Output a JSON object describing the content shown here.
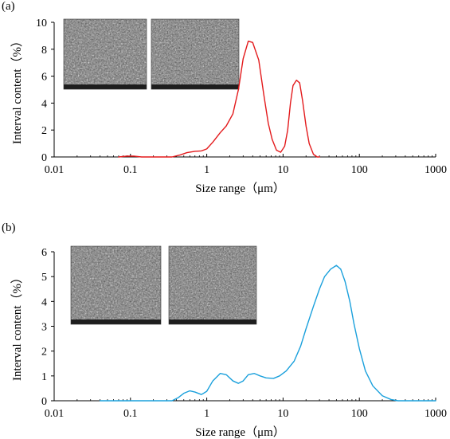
{
  "chart_data": [
    {
      "panel_label": "(a)",
      "type": "line",
      "xlabel": "Size range（μm）",
      "ylabel": "Interval content（%）",
      "x_scale": "log",
      "xlim": [
        0.01,
        1000
      ],
      "ylim": [
        0,
        10
      ],
      "x_ticks": [
        "0.01",
        "0.1",
        "1",
        "10",
        "100",
        "1000"
      ],
      "y_ticks": [
        "0",
        "2",
        "4",
        "6",
        "8",
        "10"
      ],
      "series": [
        {
          "color": "#e31a1c",
          "points": [
            [
              0.07,
              0.0
            ],
            [
              0.09,
              0.06
            ],
            [
              0.11,
              0.06
            ],
            [
              0.14,
              0.0
            ],
            [
              0.35,
              0.0
            ],
            [
              0.45,
              0.15
            ],
            [
              0.55,
              0.32
            ],
            [
              0.7,
              0.42
            ],
            [
              0.85,
              0.45
            ],
            [
              1.0,
              0.6
            ],
            [
              1.2,
              1.1
            ],
            [
              1.5,
              1.8
            ],
            [
              1.8,
              2.3
            ],
            [
              2.2,
              3.2
            ],
            [
              2.6,
              5.0
            ],
            [
              3.0,
              7.3
            ],
            [
              3.5,
              8.6
            ],
            [
              4.0,
              8.5
            ],
            [
              4.8,
              7.2
            ],
            [
              5.6,
              4.6
            ],
            [
              6.4,
              2.5
            ],
            [
              7.2,
              1.3
            ],
            [
              8.2,
              0.5
            ],
            [
              9.3,
              0.35
            ],
            [
              10.5,
              0.8
            ],
            [
              11.5,
              2.0
            ],
            [
              12.5,
              4.0
            ],
            [
              13.5,
              5.3
            ],
            [
              15.0,
              5.7
            ],
            [
              16.5,
              5.5
            ],
            [
              18.0,
              4.2
            ],
            [
              20.0,
              2.3
            ],
            [
              22.0,
              1.0
            ],
            [
              25.0,
              0.2
            ],
            [
              28.0,
              0.0
            ],
            [
              30.0,
              0.0
            ]
          ]
        }
      ]
    },
    {
      "panel_label": "(b)",
      "type": "line",
      "xlabel": "Size range（μm）",
      "ylabel": "Interval content（%）",
      "x_scale": "log",
      "xlim": [
        0.01,
        1000
      ],
      "ylim": [
        0,
        6
      ],
      "x_ticks": [
        "0.01",
        "0.1",
        "1",
        "10",
        "100",
        "1000"
      ],
      "y_ticks": [
        "0",
        "1",
        "2",
        "3",
        "4",
        "5",
        "6"
      ],
      "series": [
        {
          "color": "#1aa0dc",
          "points": [
            [
              0.04,
              0.0
            ],
            [
              0.35,
              0.0
            ],
            [
              0.42,
              0.12
            ],
            [
              0.5,
              0.3
            ],
            [
              0.6,
              0.4
            ],
            [
              0.7,
              0.35
            ],
            [
              0.85,
              0.25
            ],
            [
              1.0,
              0.38
            ],
            [
              1.2,
              0.8
            ],
            [
              1.5,
              1.1
            ],
            [
              1.8,
              1.05
            ],
            [
              2.2,
              0.8
            ],
            [
              2.6,
              0.7
            ],
            [
              3.0,
              0.8
            ],
            [
              3.5,
              1.05
            ],
            [
              4.2,
              1.1
            ],
            [
              5.0,
              1.0
            ],
            [
              6.0,
              0.92
            ],
            [
              7.5,
              0.9
            ],
            [
              9.0,
              1.0
            ],
            [
              11.0,
              1.2
            ],
            [
              14.0,
              1.6
            ],
            [
              17.0,
              2.2
            ],
            [
              20.0,
              2.9
            ],
            [
              25.0,
              3.8
            ],
            [
              30.0,
              4.5
            ],
            [
              35.0,
              5.0
            ],
            [
              42.0,
              5.3
            ],
            [
              50.0,
              5.45
            ],
            [
              57.0,
              5.3
            ],
            [
              65.0,
              4.8
            ],
            [
              75.0,
              4.0
            ],
            [
              85.0,
              3.1
            ],
            [
              100.0,
              2.1
            ],
            [
              120.0,
              1.2
            ],
            [
              150.0,
              0.6
            ],
            [
              200.0,
              0.2
            ],
            [
              260.0,
              0.05
            ],
            [
              320.0,
              0.0
            ],
            [
              1000.0,
              0.0
            ]
          ]
        }
      ]
    }
  ]
}
